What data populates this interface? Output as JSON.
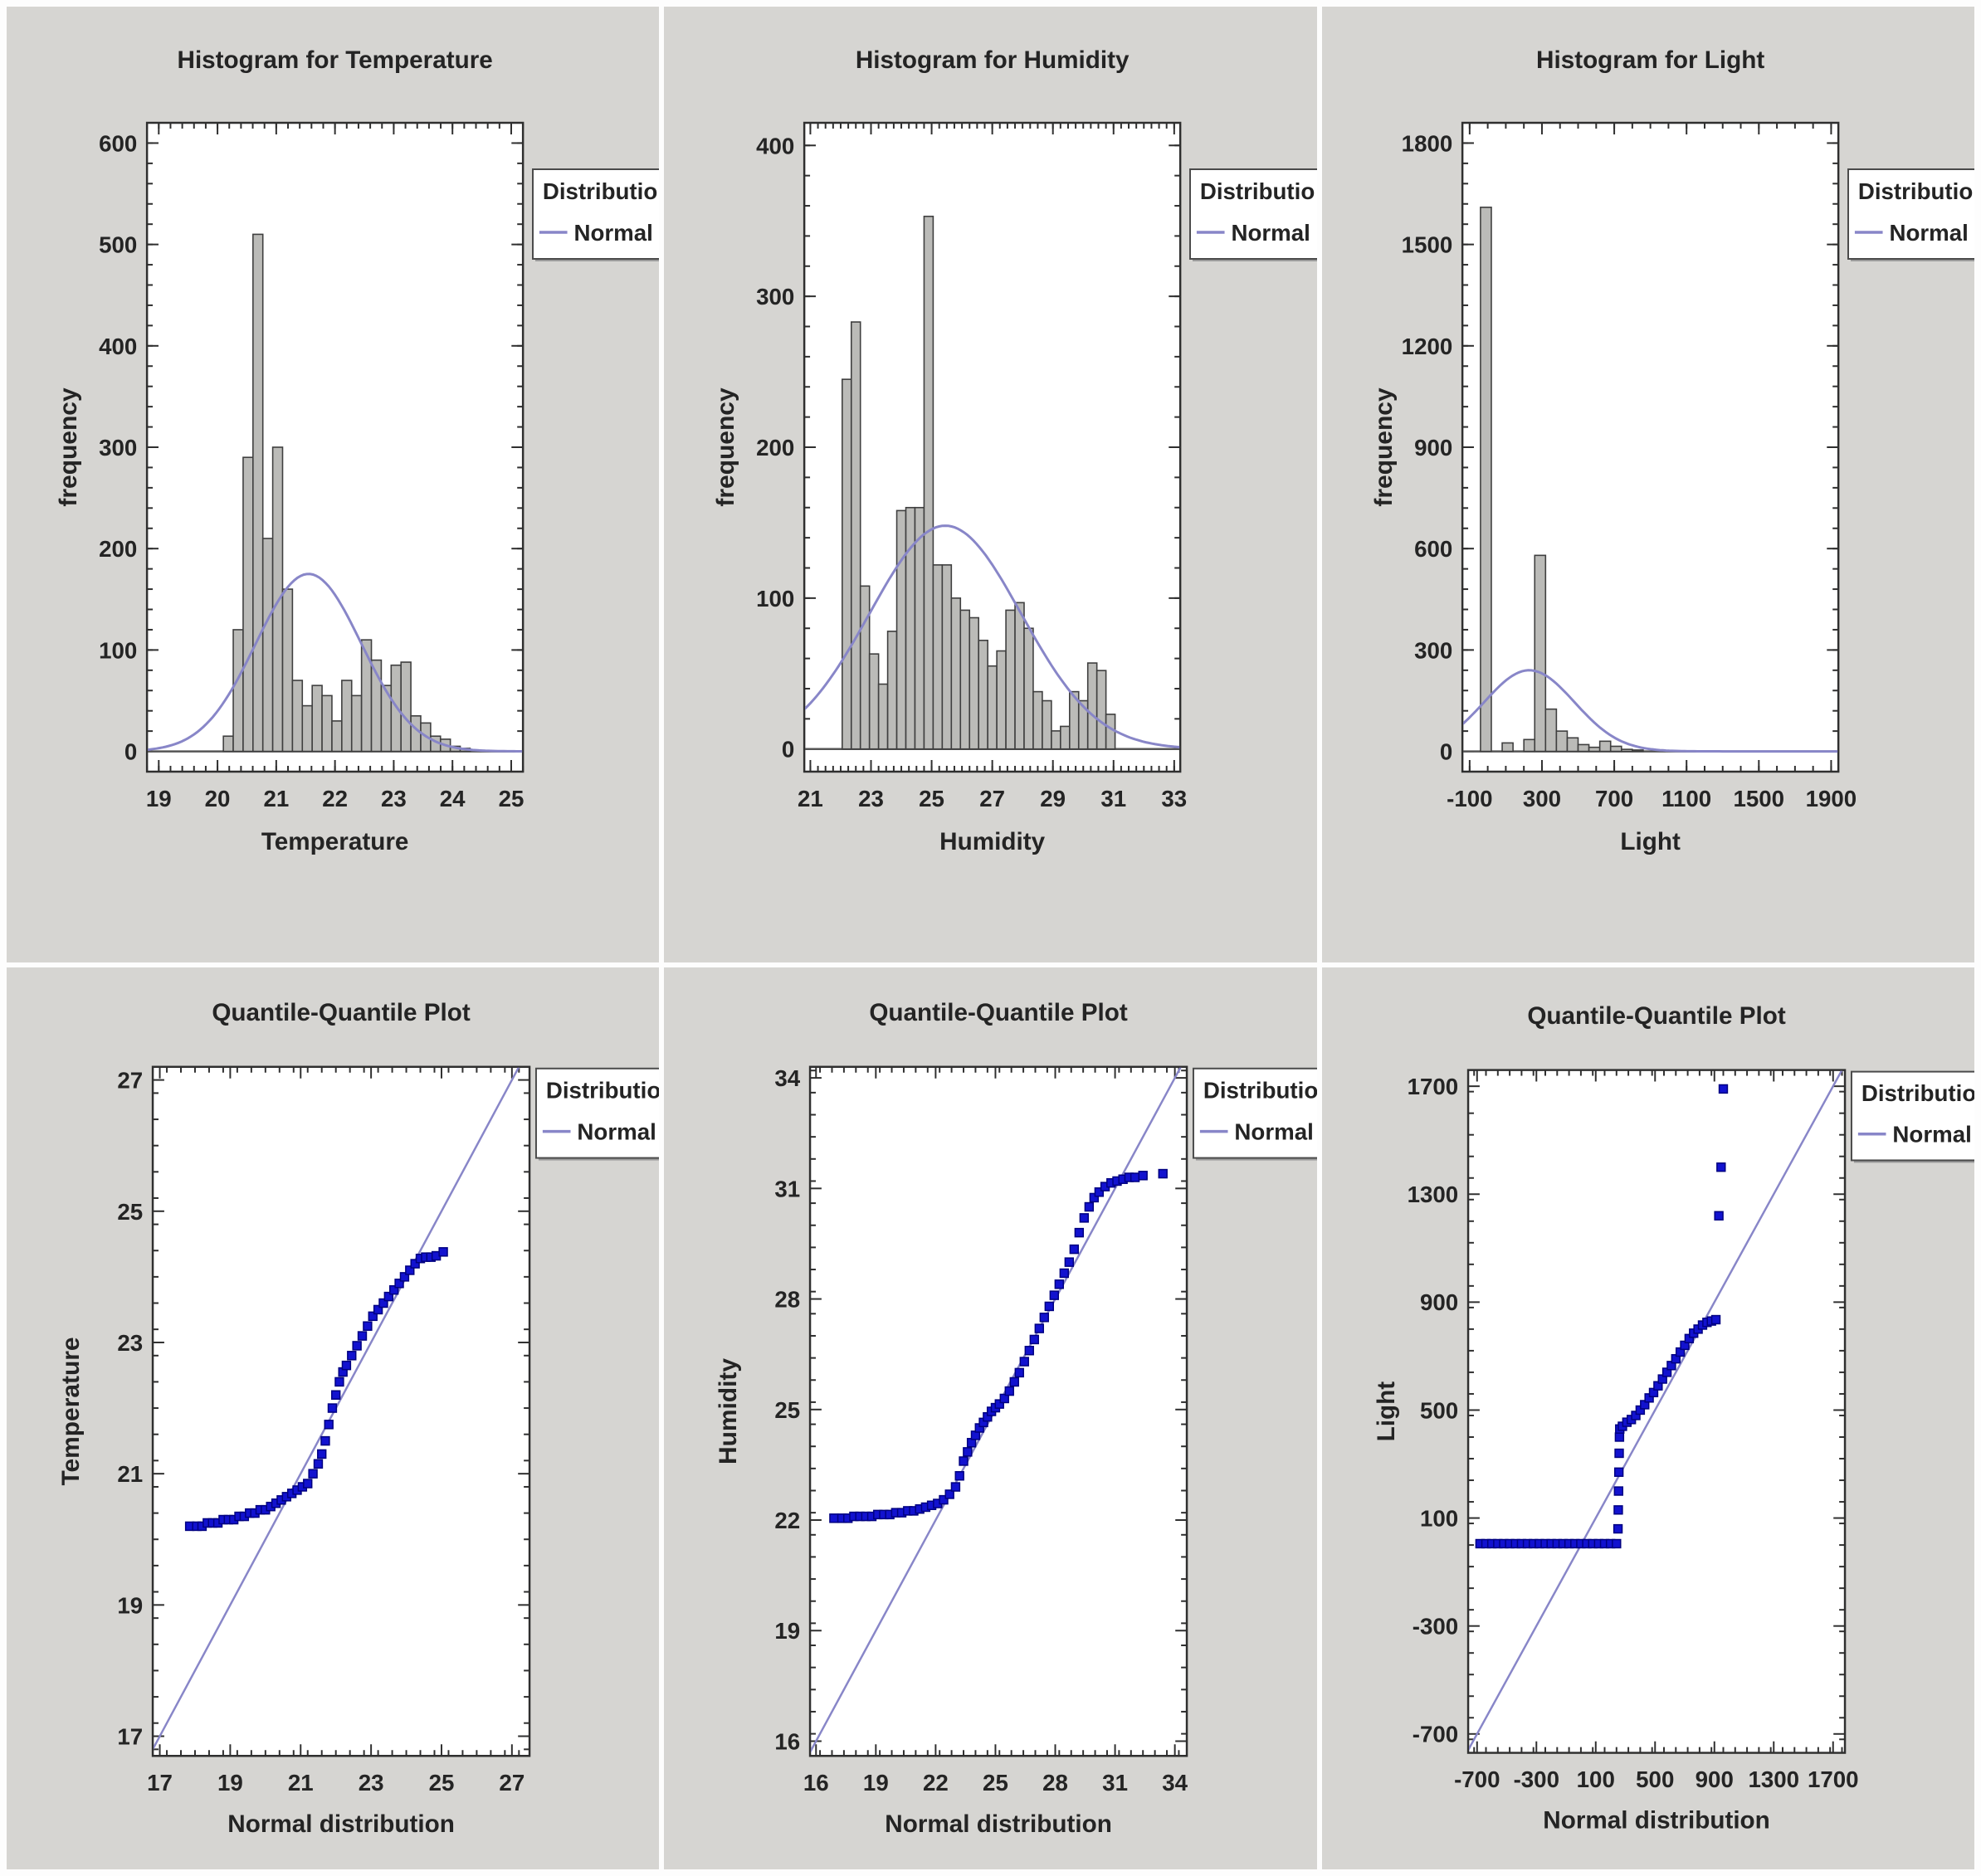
{
  "figure": {
    "panel_background": "#d6d5d2",
    "page_background": "#fdfdfd",
    "rows": 2,
    "cols": 3
  },
  "colors": {
    "normal_line": "#8886c8",
    "qq_point_fill": "#1212cf",
    "qq_point_edge": "#000080",
    "bar_fill": "#bbbbb8",
    "bar_edge": "#3f3f3f",
    "frame_edge": "#2f2f2f",
    "zero_line": "#555555",
    "text": "#242424",
    "legend_bg": "#ffffff",
    "legend_edge": "#4a4a4a"
  },
  "legend": {
    "title": "Distributio",
    "entry": "Normal"
  },
  "chart_data": [
    {
      "type": "histogram",
      "title": "Histogram for Temperature",
      "xlabel": "Temperature",
      "ylabel": "frequency",
      "xlim": [
        18.8,
        25.2
      ],
      "ylim": [
        -20,
        620
      ],
      "xticks": [
        19,
        20,
        21,
        22,
        23,
        24,
        25
      ],
      "yticks": [
        0,
        100,
        200,
        300,
        400,
        500,
        600
      ],
      "xminor": 0.2,
      "yminor": 20,
      "grid": false,
      "legend_position": "top-right-clipped",
      "bins": {
        "start": 20.1,
        "width": 0.168,
        "values": [
          15,
          120,
          290,
          510,
          210,
          300,
          160,
          70,
          45,
          65,
          55,
          30,
          70,
          55,
          110,
          90,
          65,
          85,
          88,
          35,
          28,
          15,
          12,
          5,
          3
        ]
      },
      "normal_curve": {
        "mean": 21.55,
        "sd": 0.9,
        "peak": 175
      }
    },
    {
      "type": "histogram",
      "title": "Histogram for Humidity",
      "xlabel": "Humidity",
      "ylabel": "frequency",
      "xlim": [
        20.8,
        33.2
      ],
      "ylim": [
        -15,
        415
      ],
      "xticks": [
        21,
        23,
        25,
        27,
        29,
        31,
        33
      ],
      "yticks": [
        0,
        100,
        200,
        300,
        400
      ],
      "xminor": 0.25,
      "yminor": 20,
      "grid": false,
      "legend_position": "top-right-clipped",
      "bins": {
        "start": 22.05,
        "width": 0.3,
        "values": [
          245,
          283,
          108,
          63,
          43,
          78,
          158,
          160,
          160,
          353,
          122,
          122,
          100,
          92,
          87,
          72,
          55,
          65,
          92,
          97,
          80,
          38,
          32,
          12,
          15,
          38,
          32,
          57,
          52,
          23
        ]
      },
      "normal_curve": {
        "mean": 25.45,
        "sd": 2.5,
        "peak": 148
      }
    },
    {
      "type": "histogram",
      "title": "Histogram for Light",
      "xlabel": "Light",
      "ylabel": "frequency",
      "xlim": [
        -140,
        1940
      ],
      "ylim": [
        -60,
        1860
      ],
      "xticks": [
        -100,
        300,
        700,
        1100,
        1500,
        1900
      ],
      "yticks": [
        0,
        300,
        600,
        900,
        1200,
        1500,
        1800
      ],
      "xminor": 100,
      "yminor": 60,
      "grid": false,
      "legend_position": "top-right-clipped",
      "bins": {
        "start": -40,
        "width": 60,
        "values": [
          1610,
          0,
          25,
          0,
          35,
          580,
          125,
          60,
          40,
          20,
          12,
          30,
          15,
          6,
          4
        ]
      },
      "normal_curve": {
        "mean": 230,
        "sd": 250,
        "peak": 240
      }
    },
    {
      "type": "qq",
      "title": "Quantile-Quantile Plot",
      "xlabel": "Normal distribution",
      "ylabel": "Temperature",
      "xlim": [
        16.8,
        27.5
      ],
      "ylim": [
        16.7,
        27.2
      ],
      "xticks": [
        17,
        19,
        21,
        23,
        25,
        27
      ],
      "yticks": [
        17,
        19,
        21,
        23,
        25,
        27
      ],
      "xminor": 0.4,
      "yminor": 0.4,
      "grid": false,
      "legend_position": "top-right-clipped",
      "reference_line": [
        [
          16.8,
          16.8
        ],
        [
          27.2,
          27.2
        ]
      ],
      "points": [
        [
          17.85,
          20.2
        ],
        [
          18.05,
          20.2
        ],
        [
          18.2,
          20.2
        ],
        [
          18.35,
          20.25
        ],
        [
          18.5,
          20.25
        ],
        [
          18.65,
          20.25
        ],
        [
          18.8,
          20.3
        ],
        [
          18.95,
          20.3
        ],
        [
          19.1,
          20.3
        ],
        [
          19.25,
          20.35
        ],
        [
          19.4,
          20.35
        ],
        [
          19.55,
          20.4
        ],
        [
          19.7,
          20.4
        ],
        [
          19.85,
          20.45
        ],
        [
          20.0,
          20.45
        ],
        [
          20.15,
          20.5
        ],
        [
          20.3,
          20.55
        ],
        [
          20.45,
          20.6
        ],
        [
          20.6,
          20.65
        ],
        [
          20.75,
          20.7
        ],
        [
          20.9,
          20.75
        ],
        [
          21.05,
          20.8
        ],
        [
          21.2,
          20.85
        ],
        [
          21.35,
          21.0
        ],
        [
          21.5,
          21.15
        ],
        [
          21.6,
          21.3
        ],
        [
          21.7,
          21.5
        ],
        [
          21.8,
          21.75
        ],
        [
          21.9,
          22.0
        ],
        [
          22.0,
          22.2
        ],
        [
          22.1,
          22.4
        ],
        [
          22.2,
          22.55
        ],
        [
          22.3,
          22.65
        ],
        [
          22.45,
          22.8
        ],
        [
          22.6,
          22.95
        ],
        [
          22.75,
          23.1
        ],
        [
          22.9,
          23.25
        ],
        [
          23.05,
          23.4
        ],
        [
          23.2,
          23.5
        ],
        [
          23.35,
          23.6
        ],
        [
          23.5,
          23.7
        ],
        [
          23.65,
          23.8
        ],
        [
          23.8,
          23.9
        ],
        [
          23.95,
          24.0
        ],
        [
          24.1,
          24.1
        ],
        [
          24.25,
          24.2
        ],
        [
          24.4,
          24.28
        ],
        [
          24.55,
          24.3
        ],
        [
          24.7,
          24.3
        ],
        [
          24.85,
          24.32
        ],
        [
          25.05,
          24.38
        ]
      ]
    },
    {
      "type": "qq",
      "title": "Quantile-Quantile Plot",
      "xlabel": "Normal distribution",
      "ylabel": "Humidity",
      "xlim": [
        15.7,
        34.6
      ],
      "ylim": [
        15.6,
        34.3
      ],
      "xticks": [
        16,
        19,
        22,
        25,
        28,
        31,
        34
      ],
      "yticks": [
        16,
        19,
        22,
        25,
        28,
        31,
        34
      ],
      "xminor": 0.6,
      "yminor": 0.6,
      "grid": false,
      "legend_position": "top-right-clipped",
      "reference_line": [
        [
          15.7,
          15.7
        ],
        [
          34.3,
          34.3
        ]
      ],
      "points": [
        [
          16.9,
          22.05
        ],
        [
          17.3,
          22.05
        ],
        [
          17.6,
          22.05
        ],
        [
          17.9,
          22.1
        ],
        [
          18.2,
          22.1
        ],
        [
          18.5,
          22.1
        ],
        [
          18.8,
          22.1
        ],
        [
          19.1,
          22.15
        ],
        [
          19.4,
          22.15
        ],
        [
          19.7,
          22.15
        ],
        [
          20.0,
          22.2
        ],
        [
          20.3,
          22.2
        ],
        [
          20.6,
          22.25
        ],
        [
          20.9,
          22.25
        ],
        [
          21.2,
          22.3
        ],
        [
          21.5,
          22.35
        ],
        [
          21.8,
          22.4
        ],
        [
          22.1,
          22.45
        ],
        [
          22.4,
          22.55
        ],
        [
          22.7,
          22.7
        ],
        [
          23.0,
          22.9
        ],
        [
          23.2,
          23.2
        ],
        [
          23.4,
          23.6
        ],
        [
          23.6,
          23.85
        ],
        [
          23.8,
          24.1
        ],
        [
          24.0,
          24.3
        ],
        [
          24.2,
          24.5
        ],
        [
          24.4,
          24.65
        ],
        [
          24.6,
          24.8
        ],
        [
          24.8,
          24.95
        ],
        [
          25.0,
          25.05
        ],
        [
          25.2,
          25.15
        ],
        [
          25.45,
          25.3
        ],
        [
          25.7,
          25.5
        ],
        [
          25.95,
          25.75
        ],
        [
          26.2,
          26.0
        ],
        [
          26.45,
          26.3
        ],
        [
          26.7,
          26.6
        ],
        [
          26.95,
          26.9
        ],
        [
          27.2,
          27.2
        ],
        [
          27.45,
          27.5
        ],
        [
          27.7,
          27.8
        ],
        [
          27.95,
          28.1
        ],
        [
          28.2,
          28.4
        ],
        [
          28.45,
          28.7
        ],
        [
          28.7,
          29.0
        ],
        [
          28.95,
          29.35
        ],
        [
          29.2,
          29.8
        ],
        [
          29.45,
          30.2
        ],
        [
          29.7,
          30.5
        ],
        [
          29.95,
          30.75
        ],
        [
          30.2,
          30.9
        ],
        [
          30.5,
          31.05
        ],
        [
          30.8,
          31.15
        ],
        [
          31.1,
          31.2
        ],
        [
          31.4,
          31.25
        ],
        [
          31.7,
          31.3
        ],
        [
          32.0,
          31.3
        ],
        [
          32.4,
          31.35
        ],
        [
          33.4,
          31.4
        ]
      ]
    },
    {
      "type": "qq",
      "title": "Quantile-Quantile Plot",
      "xlabel": "Normal distribution",
      "ylabel": "Light",
      "xlim": [
        -760,
        1780
      ],
      "ylim": [
        -770,
        1760
      ],
      "xticks": [
        -700,
        -300,
        100,
        500,
        900,
        1300,
        1700
      ],
      "yticks": [
        -700,
        -300,
        100,
        500,
        900,
        1300,
        1700
      ],
      "xminor": 80,
      "yminor": 80,
      "grid": false,
      "legend_position": "top-right-clipped",
      "reference_line": [
        [
          -760,
          -760
        ],
        [
          1760,
          1760
        ]
      ],
      "points": [
        [
          -680,
          5
        ],
        [
          -640,
          5
        ],
        [
          -600,
          5
        ],
        [
          -560,
          5
        ],
        [
          -520,
          5
        ],
        [
          -480,
          5
        ],
        [
          -440,
          5
        ],
        [
          -400,
          5
        ],
        [
          -360,
          5
        ],
        [
          -320,
          5
        ],
        [
          -280,
          5
        ],
        [
          -240,
          5
        ],
        [
          -200,
          5
        ],
        [
          -160,
          5
        ],
        [
          -120,
          5
        ],
        [
          -80,
          5
        ],
        [
          -40,
          5
        ],
        [
          0,
          5
        ],
        [
          40,
          5
        ],
        [
          80,
          5
        ],
        [
          120,
          5
        ],
        [
          160,
          5
        ],
        [
          200,
          5
        ],
        [
          240,
          5
        ],
        [
          250,
          60
        ],
        [
          252,
          130
        ],
        [
          254,
          200
        ],
        [
          256,
          270
        ],
        [
          258,
          340
        ],
        [
          260,
          400
        ],
        [
          262,
          430
        ],
        [
          280,
          440
        ],
        [
          310,
          455
        ],
        [
          340,
          465
        ],
        [
          370,
          480
        ],
        [
          400,
          500
        ],
        [
          430,
          520
        ],
        [
          460,
          545
        ],
        [
          490,
          565
        ],
        [
          520,
          590
        ],
        [
          550,
          615
        ],
        [
          580,
          640
        ],
        [
          610,
          665
        ],
        [
          640,
          690
        ],
        [
          670,
          715
        ],
        [
          700,
          740
        ],
        [
          730,
          765
        ],
        [
          760,
          785
        ],
        [
          790,
          800
        ],
        [
          820,
          815
        ],
        [
          850,
          825
        ],
        [
          880,
          830
        ],
        [
          910,
          835
        ],
        [
          930,
          1220
        ],
        [
          945,
          1400
        ],
        [
          960,
          1690
        ]
      ]
    }
  ]
}
